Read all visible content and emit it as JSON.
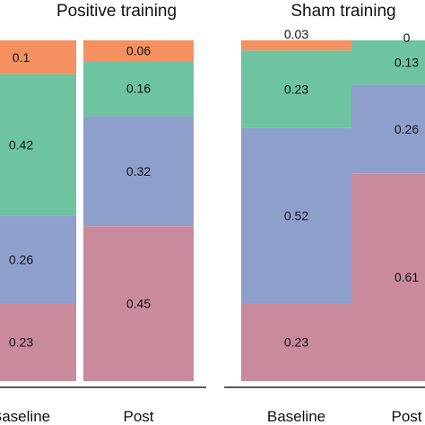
{
  "chart_data": {
    "type": "bar",
    "stacked": true,
    "colors": {
      "bottom": "#c98a9b",
      "lower_middle": "#8f9fcc",
      "upper_middle": "#6ec4a0",
      "top": "#f59060"
    },
    "panels": [
      {
        "title": "Positive training",
        "categories": [
          "Baseline",
          "Post"
        ],
        "stacks": [
          {
            "category": "Baseline",
            "values": [
              0.23,
              0.26,
              0.42,
              0.1
            ],
            "labels": [
              "0.23",
              "0.26",
              "0.42",
              "0.1"
            ]
          },
          {
            "category": "Post",
            "values": [
              0.45,
              0.32,
              0.16,
              0.06
            ],
            "labels": [
              "0.45",
              "0.32",
              "0.16",
              "0.06"
            ]
          }
        ]
      },
      {
        "title": "Sham training",
        "categories": [
          "Baseline",
          "Post"
        ],
        "stacks": [
          {
            "category": "Baseline",
            "values": [
              0.23,
              0.52,
              0.23,
              0.03
            ],
            "labels": [
              "0.23",
              "0.52",
              "0.23",
              "0.03"
            ]
          },
          {
            "category": "Post",
            "values": [
              0.61,
              0.26,
              0.13,
              0
            ],
            "labels": [
              "0.61",
              "0.26",
              "0.13",
              "0"
            ]
          }
        ]
      }
    ],
    "ylim": [
      0,
      1
    ],
    "legend": "none",
    "grid": false
  }
}
